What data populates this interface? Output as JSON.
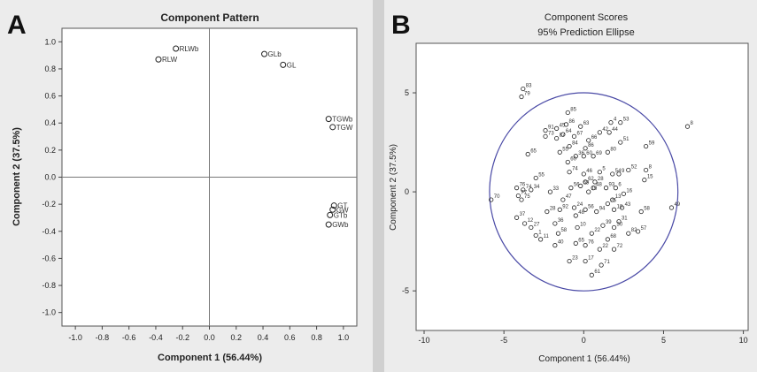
{
  "chart_data": [
    {
      "type": "scatter",
      "panel_label": "A",
      "title": "Component Pattern",
      "xlabel": "Component 1 (56.44%)",
      "ylabel": "Component 2 (37.5%)",
      "xlim": [
        -1.1,
        1.1
      ],
      "ylim": [
        -1.1,
        1.1
      ],
      "xticks": [
        "-1.0",
        "-0.8",
        "-0.6",
        "-0.4",
        "-0.2",
        "0.0",
        "0.2",
        "0.4",
        "0.6",
        "0.8",
        "1.0"
      ],
      "yticks": [
        "1.0",
        "0.8",
        "0.6",
        "0.4",
        "0.2",
        "0.0",
        "-0.2",
        "-0.4",
        "-0.6",
        "-0.8",
        "-1.0"
      ],
      "reference_lines": {
        "x": 0,
        "y": 0
      },
      "points": [
        {
          "label": "RLWb",
          "x": -0.25,
          "y": 0.95
        },
        {
          "label": "RLW",
          "x": -0.38,
          "y": 0.87
        },
        {
          "label": "GLb",
          "x": 0.41,
          "y": 0.91
        },
        {
          "label": "GL",
          "x": 0.55,
          "y": 0.83
        },
        {
          "label": "TGWb",
          "x": 0.89,
          "y": 0.43
        },
        {
          "label": "TGW",
          "x": 0.92,
          "y": 0.37
        },
        {
          "label": "GT",
          "x": 0.93,
          "y": -0.21
        },
        {
          "label": "GW",
          "x": 0.92,
          "y": -0.24
        },
        {
          "label": "GTb",
          "x": 0.9,
          "y": -0.28
        },
        {
          "label": "GWb",
          "x": 0.89,
          "y": -0.35
        }
      ]
    },
    {
      "type": "scatter",
      "panel_label": "B",
      "title": "Component Scores",
      "subtitle": "95% Prediction Ellipse",
      "xlabel": "Component 1 (56.44%)",
      "ylabel": "Component 2 (37.5%)",
      "xlim": [
        -10.5,
        10.3
      ],
      "ylim": [
        -7,
        7.5
      ],
      "xticks": [
        "-10",
        "-5",
        "0",
        "5",
        "10"
      ],
      "yticks": [
        "5",
        "0",
        "-5"
      ],
      "ellipse": {
        "cx": 0,
        "cy": 0,
        "rx": 5.9,
        "ry": 5.0,
        "color": "#4a4aa6"
      },
      "points": [
        {
          "label": "83",
          "x": -3.8,
          "y": 5.2
        },
        {
          "label": "79",
          "x": -3.9,
          "y": 4.8
        },
        {
          "label": "8",
          "x": 6.5,
          "y": 3.3
        },
        {
          "label": "85",
          "x": -1.0,
          "y": 4.0
        },
        {
          "label": "4",
          "x": 1.7,
          "y": 3.5
        },
        {
          "label": "53",
          "x": 2.3,
          "y": 3.5
        },
        {
          "label": "86",
          "x": -1.1,
          "y": 3.4
        },
        {
          "label": "63",
          "x": -0.2,
          "y": 3.3
        },
        {
          "label": "45",
          "x": -1.7,
          "y": 3.2
        },
        {
          "label": "91",
          "x": -2.4,
          "y": 3.1
        },
        {
          "label": "42",
          "x": 1.0,
          "y": 3.0
        },
        {
          "label": "44",
          "x": 1.6,
          "y": 3.0
        },
        {
          "label": "64",
          "x": -1.3,
          "y": 2.9
        },
        {
          "label": "67",
          "x": -0.6,
          "y": 2.8
        },
        {
          "label": "73",
          "x": -2.4,
          "y": 2.8
        },
        {
          "label": "87",
          "x": -1.7,
          "y": 2.7
        },
        {
          "label": "66",
          "x": 0.3,
          "y": 2.6
        },
        {
          "label": "51",
          "x": 2.3,
          "y": 2.5
        },
        {
          "label": "59",
          "x": 3.9,
          "y": 2.3
        },
        {
          "label": "84",
          "x": -0.9,
          "y": 2.3
        },
        {
          "label": "86b",
          "x": 0.1,
          "y": 2.2
        },
        {
          "label": "80",
          "x": 1.5,
          "y": 2.0
        },
        {
          "label": "55",
          "x": -1.5,
          "y": 2.0
        },
        {
          "label": "65",
          "x": -3.5,
          "y": 1.9
        },
        {
          "label": "36",
          "x": -0.5,
          "y": 1.8
        },
        {
          "label": "60",
          "x": 0.0,
          "y": 1.8
        },
        {
          "label": "69",
          "x": 0.6,
          "y": 1.8
        },
        {
          "label": "60b",
          "x": -1.0,
          "y": 1.5
        },
        {
          "label": "52",
          "x": 2.8,
          "y": 1.1
        },
        {
          "label": "8b",
          "x": 3.9,
          "y": 1.1
        },
        {
          "label": "74",
          "x": -0.9,
          "y": 1.0
        },
        {
          "label": "5",
          "x": 1.0,
          "y": 1.0
        },
        {
          "label": "46",
          "x": 0.0,
          "y": 0.9
        },
        {
          "label": "54",
          "x": 1.8,
          "y": 0.9
        },
        {
          "label": "9",
          "x": 2.2,
          "y": 0.9
        },
        {
          "label": "55b",
          "x": -3.0,
          "y": 0.7
        },
        {
          "label": "15",
          "x": 3.8,
          "y": 0.6
        },
        {
          "label": "62",
          "x": 0.1,
          "y": 0.5
        },
        {
          "label": "28",
          "x": 0.7,
          "y": 0.5
        },
        {
          "label": "59b",
          "x": -0.2,
          "y": 0.3
        },
        {
          "label": "56",
          "x": -0.8,
          "y": 0.2
        },
        {
          "label": "48",
          "x": 0.6,
          "y": 0.2
        },
        {
          "label": "93",
          "x": 1.4,
          "y": 0.2
        },
        {
          "label": "6",
          "x": 2.0,
          "y": 0.2
        },
        {
          "label": "34",
          "x": -3.3,
          "y": 0.1
        },
        {
          "label": "33",
          "x": -2.1,
          "y": 0.0
        },
        {
          "label": "19",
          "x": 0.3,
          "y": 0.0
        },
        {
          "label": "74b",
          "x": -3.8,
          "y": 0.1
        },
        {
          "label": "76",
          "x": -4.2,
          "y": 0.2
        },
        {
          "label": "16",
          "x": 2.5,
          "y": -0.1
        },
        {
          "label": "70",
          "x": -5.8,
          "y": -0.4
        },
        {
          "label": "77",
          "x": -4.1,
          "y": -0.2
        },
        {
          "label": "75",
          "x": -3.9,
          "y": -0.4
        },
        {
          "label": "47",
          "x": -1.3,
          "y": -0.4
        },
        {
          "label": "13",
          "x": 1.8,
          "y": -0.4
        },
        {
          "label": "25",
          "x": 1.5,
          "y": -0.6
        },
        {
          "label": "49",
          "x": 5.5,
          "y": -0.8
        },
        {
          "label": "24",
          "x": -0.6,
          "y": -0.8
        },
        {
          "label": "56b",
          "x": 0.1,
          "y": -0.9
        },
        {
          "label": "18",
          "x": 1.9,
          "y": -0.9
        },
        {
          "label": "43",
          "x": 2.4,
          "y": -0.8
        },
        {
          "label": "92",
          "x": -1.5,
          "y": -0.9
        },
        {
          "label": "28b",
          "x": -2.3,
          "y": -1.0
        },
        {
          "label": "94",
          "x": 0.8,
          "y": -1.0
        },
        {
          "label": "58",
          "x": 3.6,
          "y": -1.0
        },
        {
          "label": "48b",
          "x": -0.5,
          "y": -1.2
        },
        {
          "label": "37",
          "x": -4.2,
          "y": -1.3
        },
        {
          "label": "31",
          "x": 2.2,
          "y": -1.5
        },
        {
          "label": "12",
          "x": -3.7,
          "y": -1.6
        },
        {
          "label": "36b",
          "x": -1.8,
          "y": -1.6
        },
        {
          "label": "27",
          "x": -3.3,
          "y": -1.8
        },
        {
          "label": "10",
          "x": -0.4,
          "y": -1.8
        },
        {
          "label": "39",
          "x": 1.2,
          "y": -1.7
        },
        {
          "label": "30",
          "x": 1.9,
          "y": -1.8
        },
        {
          "label": "57",
          "x": 3.4,
          "y": -2.0
        },
        {
          "label": "82",
          "x": 2.8,
          "y": -2.1
        },
        {
          "label": "58b",
          "x": -1.6,
          "y": -2.1
        },
        {
          "label": "22",
          "x": 0.5,
          "y": -2.1
        },
        {
          "label": "1",
          "x": -3.0,
          "y": -2.2
        },
        {
          "label": "11",
          "x": -2.7,
          "y": -2.4
        },
        {
          "label": "68",
          "x": 1.5,
          "y": -2.4
        },
        {
          "label": "65b",
          "x": -0.5,
          "y": -2.6
        },
        {
          "label": "40",
          "x": -1.8,
          "y": -2.7
        },
        {
          "label": "76b",
          "x": 0.1,
          "y": -2.7
        },
        {
          "label": "22b",
          "x": 1.0,
          "y": -2.9
        },
        {
          "label": "72",
          "x": 1.9,
          "y": -2.9
        },
        {
          "label": "23",
          "x": -0.9,
          "y": -3.5
        },
        {
          "label": "17",
          "x": 0.1,
          "y": -3.5
        },
        {
          "label": "71",
          "x": 1.1,
          "y": -3.7
        },
        {
          "label": "61",
          "x": 0.5,
          "y": -4.2
        }
      ]
    }
  ]
}
